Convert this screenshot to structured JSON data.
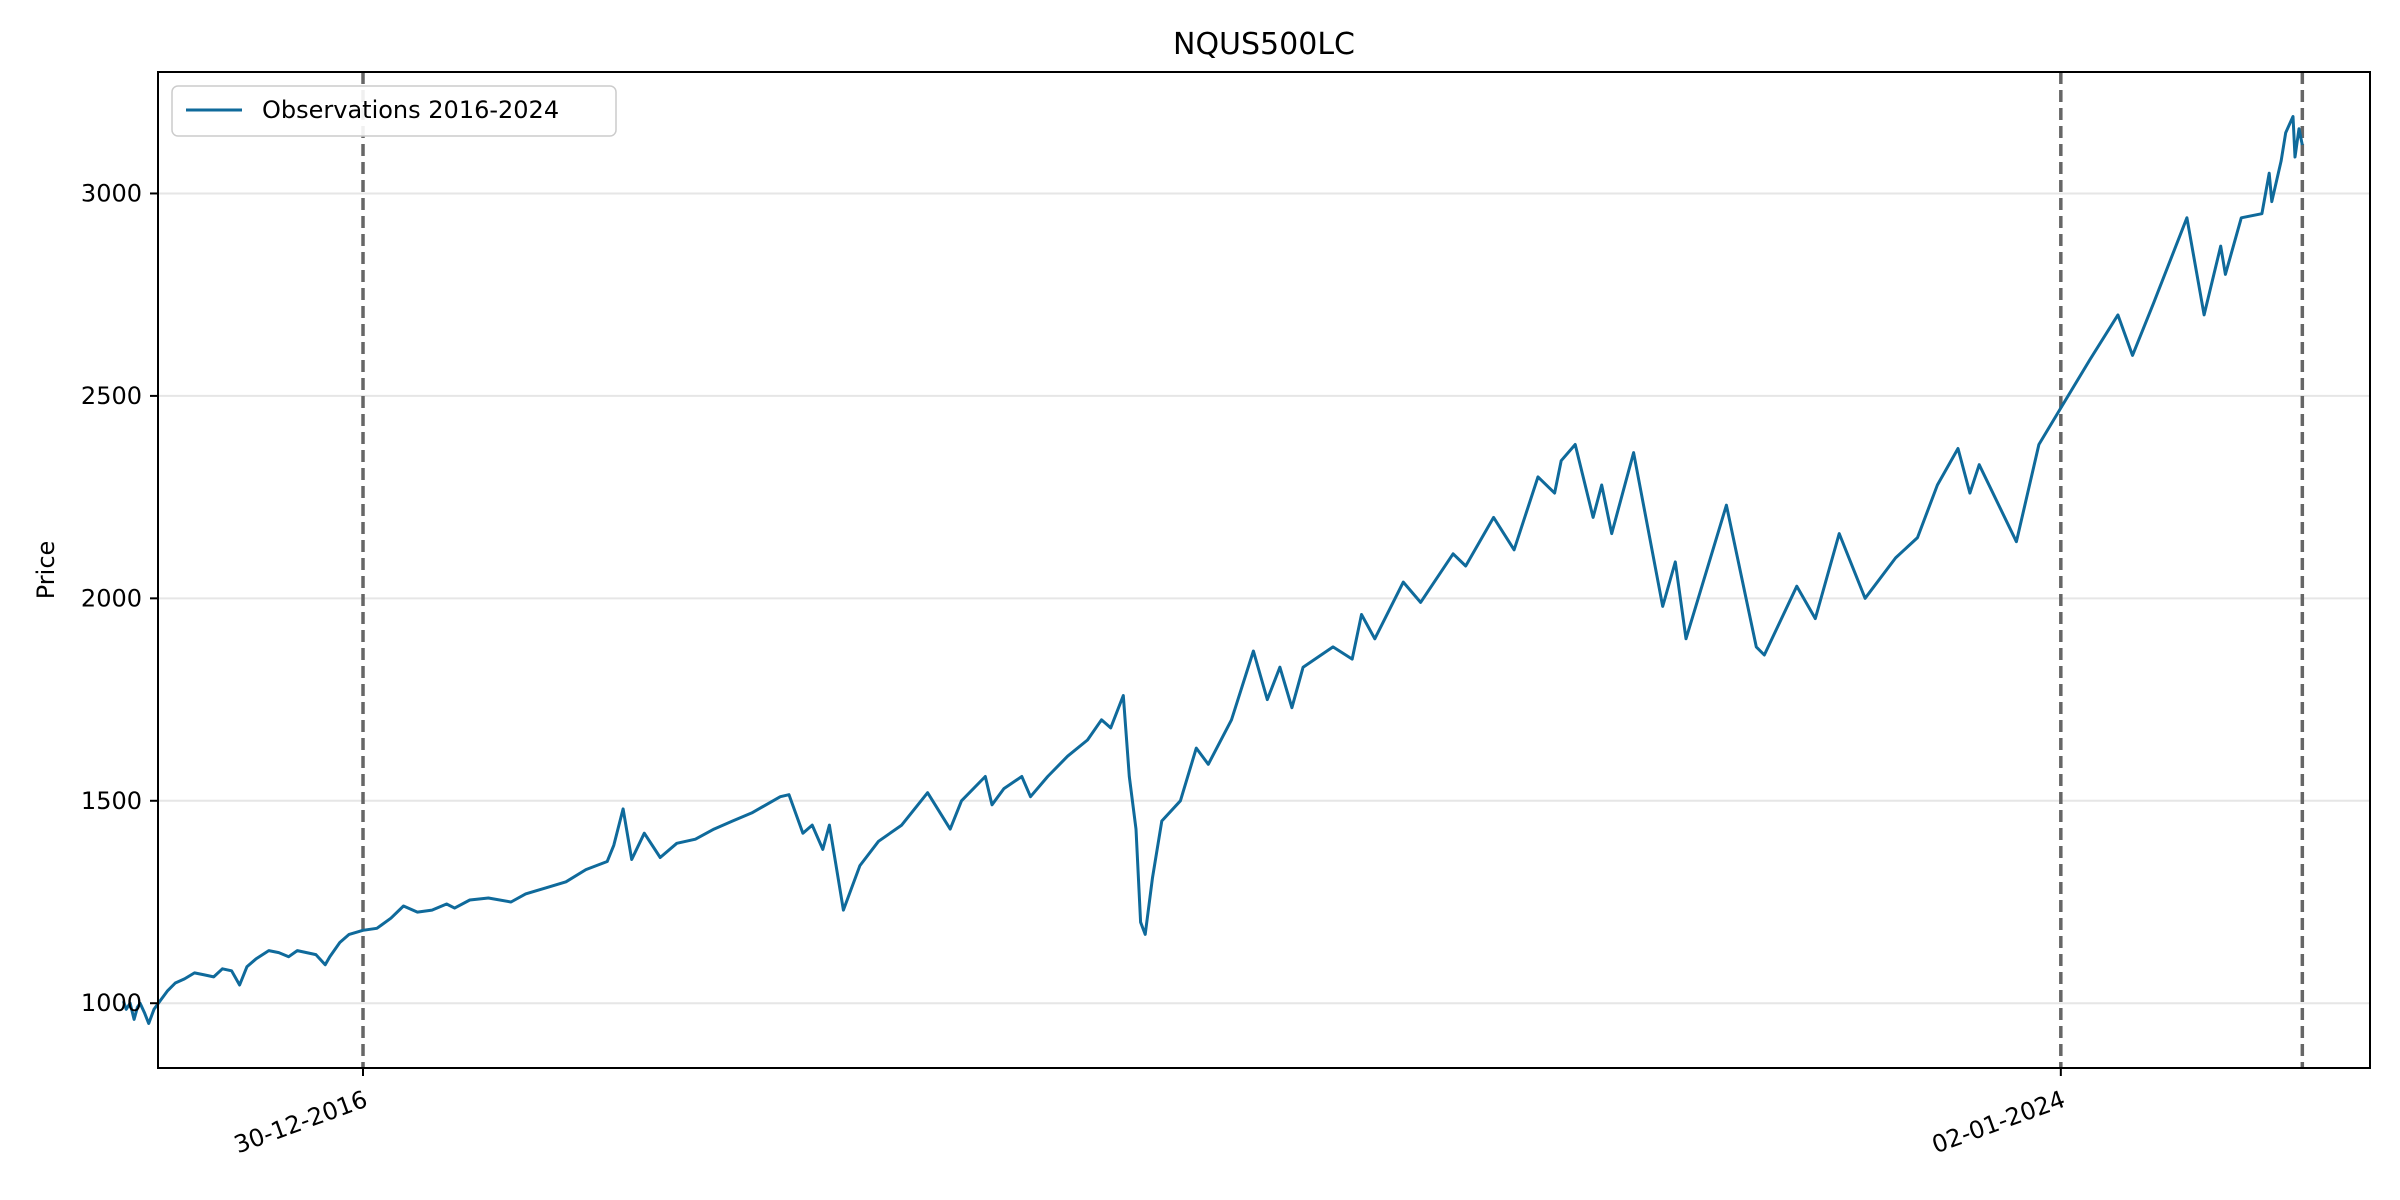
{
  "chart_data": {
    "type": "line",
    "title": "NQUS500LC",
    "xlabel": "",
    "ylabel": "Price",
    "grid": {
      "y": true,
      "x": false
    },
    "legend": {
      "placement": "top-left",
      "entries": [
        "Observations 2016-2024"
      ]
    },
    "ylim": [
      840,
      3300
    ],
    "xlim": [
      "2016-02-25",
      "2025-04-12"
    ],
    "y_ticks": [
      1000,
      1500,
      2000,
      2500,
      3000
    ],
    "x_ticks": [
      {
        "date": "2016-12-30",
        "label": "30-12-2016"
      },
      {
        "date": "2024-01-02",
        "label": "02-01-2024"
      }
    ],
    "vlines": [
      "2016-12-30",
      "2024-01-02",
      "2024-12-31"
    ],
    "colors": {
      "series": "#0f6a9b",
      "vline": "#666666",
      "grid": "#e6e6e6"
    },
    "series": [
      {
        "name": "Observations 2016-2024",
        "points": [
          [
            "2016-01-04",
            1005
          ],
          [
            "2016-01-08",
            985
          ],
          [
            "2016-01-14",
            1000
          ],
          [
            "2016-01-20",
            960
          ],
          [
            "2016-01-25",
            990
          ],
          [
            "2016-01-29",
            1000
          ],
          [
            "2016-02-05",
            975
          ],
          [
            "2016-02-11",
            950
          ],
          [
            "2016-02-19",
            985
          ],
          [
            "2016-03-01",
            1010
          ],
          [
            "2016-03-10",
            1030
          ],
          [
            "2016-03-22",
            1050
          ],
          [
            "2016-04-05",
            1060
          ],
          [
            "2016-04-20",
            1075
          ],
          [
            "2016-05-05",
            1070
          ],
          [
            "2016-05-19",
            1065
          ],
          [
            "2016-06-01",
            1085
          ],
          [
            "2016-06-15",
            1080
          ],
          [
            "2016-06-27",
            1045
          ],
          [
            "2016-07-08",
            1090
          ],
          [
            "2016-07-22",
            1110
          ],
          [
            "2016-08-10",
            1130
          ],
          [
            "2016-08-25",
            1125
          ],
          [
            "2016-09-09",
            1115
          ],
          [
            "2016-09-22",
            1130
          ],
          [
            "2016-10-06",
            1125
          ],
          [
            "2016-10-20",
            1120
          ],
          [
            "2016-11-03",
            1095
          ],
          [
            "2016-11-10",
            1115
          ],
          [
            "2016-11-25",
            1150
          ],
          [
            "2016-12-09",
            1170
          ],
          [
            "2016-12-30",
            1180
          ],
          [
            "2017-01-20",
            1185
          ],
          [
            "2017-02-10",
            1210
          ],
          [
            "2017-03-01",
            1240
          ],
          [
            "2017-03-22",
            1225
          ],
          [
            "2017-04-13",
            1230
          ],
          [
            "2017-05-05",
            1245
          ],
          [
            "2017-05-17",
            1235
          ],
          [
            "2017-06-09",
            1255
          ],
          [
            "2017-07-07",
            1260
          ],
          [
            "2017-08-10",
            1250
          ],
          [
            "2017-09-01",
            1270
          ],
          [
            "2017-10-02",
            1285
          ],
          [
            "2017-11-01",
            1300
          ],
          [
            "2017-12-01",
            1330
          ],
          [
            "2018-01-02",
            1350
          ],
          [
            "2018-01-12",
            1390
          ],
          [
            "2018-01-26",
            1480
          ],
          [
            "2018-02-08",
            1355
          ],
          [
            "2018-02-27",
            1420
          ],
          [
            "2018-03-23",
            1360
          ],
          [
            "2018-04-17",
            1395
          ],
          [
            "2018-05-15",
            1405
          ],
          [
            "2018-06-12",
            1430
          ],
          [
            "2018-07-10",
            1450
          ],
          [
            "2018-08-08",
            1470
          ],
          [
            "2018-09-20",
            1510
          ],
          [
            "2018-10-03",
            1515
          ],
          [
            "2018-10-24",
            1420
          ],
          [
            "2018-11-07",
            1440
          ],
          [
            "2018-11-23",
            1380
          ],
          [
            "2018-12-03",
            1440
          ],
          [
            "2018-12-24",
            1230
          ],
          [
            "2019-01-18",
            1340
          ],
          [
            "2019-02-15",
            1400
          ],
          [
            "2019-03-22",
            1440
          ],
          [
            "2019-04-30",
            1520
          ],
          [
            "2019-06-03",
            1430
          ],
          [
            "2019-06-20",
            1500
          ],
          [
            "2019-07-26",
            1560
          ],
          [
            "2019-08-05",
            1490
          ],
          [
            "2019-08-23",
            1530
          ],
          [
            "2019-09-19",
            1560
          ],
          [
            "2019-10-02",
            1510
          ],
          [
            "2019-10-28",
            1560
          ],
          [
            "2019-11-27",
            1610
          ],
          [
            "2019-12-27",
            1650
          ],
          [
            "2020-01-17",
            1700
          ],
          [
            "2020-01-31",
            1680
          ],
          [
            "2020-02-19",
            1760
          ],
          [
            "2020-02-28",
            1560
          ],
          [
            "2020-03-09",
            1430
          ],
          [
            "2020-03-16",
            1200
          ],
          [
            "2020-03-23",
            1170
          ],
          [
            "2020-04-03",
            1310
          ],
          [
            "2020-04-17",
            1450
          ],
          [
            "2020-05-15",
            1500
          ],
          [
            "2020-06-08",
            1630
          ],
          [
            "2020-06-26",
            1590
          ],
          [
            "2020-07-31",
            1700
          ],
          [
            "2020-09-02",
            1870
          ],
          [
            "2020-09-23",
            1750
          ],
          [
            "2020-10-12",
            1830
          ],
          [
            "2020-10-30",
            1730
          ],
          [
            "2020-11-16",
            1830
          ],
          [
            "2020-12-31",
            1880
          ],
          [
            "2021-01-29",
            1850
          ],
          [
            "2021-02-12",
            1960
          ],
          [
            "2021-03-04",
            1900
          ],
          [
            "2021-04-16",
            2040
          ],
          [
            "2021-05-12",
            1990
          ],
          [
            "2021-06-30",
            2110
          ],
          [
            "2021-07-19",
            2080
          ],
          [
            "2021-08-30",
            2200
          ],
          [
            "2021-09-30",
            2120
          ],
          [
            "2021-11-05",
            2300
          ],
          [
            "2021-11-30",
            2260
          ],
          [
            "2021-12-10",
            2340
          ],
          [
            "2021-12-31",
            2380
          ],
          [
            "2022-01-27",
            2200
          ],
          [
            "2022-02-09",
            2280
          ],
          [
            "2022-02-24",
            2160
          ],
          [
            "2022-03-29",
            2360
          ],
          [
            "2022-05-12",
            1980
          ],
          [
            "2022-05-31",
            2090
          ],
          [
            "2022-06-16",
            1900
          ],
          [
            "2022-08-16",
            2230
          ],
          [
            "2022-09-30",
            1880
          ],
          [
            "2022-10-12",
            1860
          ],
          [
            "2022-11-30",
            2030
          ],
          [
            "2022-12-28",
            1950
          ],
          [
            "2023-02-02",
            2160
          ],
          [
            "2023-03-13",
            2000
          ],
          [
            "2023-04-28",
            2100
          ],
          [
            "2023-05-31",
            2150
          ],
          [
            "2023-06-30",
            2280
          ],
          [
            "2023-07-31",
            2370
          ],
          [
            "2023-08-18",
            2260
          ],
          [
            "2023-09-01",
            2330
          ],
          [
            "2023-10-27",
            2140
          ],
          [
            "2023-11-30",
            2380
          ],
          [
            "2024-01-02",
            2470
          ],
          [
            "2024-02-15",
            2590
          ],
          [
            "2024-03-28",
            2700
          ],
          [
            "2024-04-19",
            2600
          ],
          [
            "2024-05-21",
            2730
          ],
          [
            "2024-07-10",
            2940
          ],
          [
            "2024-08-05",
            2700
          ],
          [
            "2024-08-30",
            2870
          ],
          [
            "2024-09-06",
            2800
          ],
          [
            "2024-09-30",
            2940
          ],
          [
            "2024-10-31",
            2950
          ],
          [
            "2024-11-11",
            3050
          ],
          [
            "2024-11-15",
            2980
          ],
          [
            "2024-11-29",
            3080
          ],
          [
            "2024-12-06",
            3150
          ],
          [
            "2024-12-17",
            3190
          ],
          [
            "2024-12-20",
            3090
          ],
          [
            "2024-12-26",
            3160
          ],
          [
            "2024-12-31",
            3120
          ]
        ]
      }
    ]
  }
}
